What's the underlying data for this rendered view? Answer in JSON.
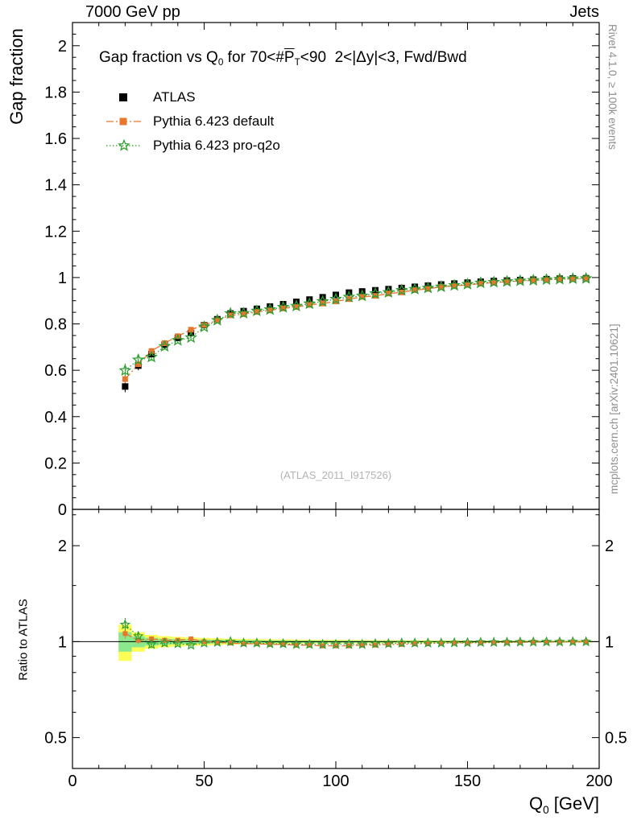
{
  "header": {
    "left": "7000 GeV pp",
    "right": "Jets"
  },
  "title": {
    "t1": "Gap fraction vs Q",
    "t1sub": "0",
    "t2": " for 70<#",
    "t3": "P",
    "t3sub": "T",
    "t4": "<90  2<|Δy|<3, Fwd/Bwd"
  },
  "legend": [
    {
      "label": "ATLAS",
      "marker": "square-filled",
      "color": "#000000",
      "line": "none"
    },
    {
      "label": "Pythia 6.423 default",
      "marker": "square-filled",
      "color": "#e8772e",
      "line": "dashdot"
    },
    {
      "label": "Pythia 6.423 pro-q2o",
      "marker": "star-open",
      "color": "#2f9e2f",
      "line": "dotted"
    }
  ],
  "watermark": "(ATLAS_2011_I917526)",
  "side_labels": {
    "top_right": "Rivet 4.1.0, ≥ 100k events",
    "bottom_right": "mcplots.cern.ch [arXiv:2401.10621]"
  },
  "axes": {
    "main_ylabel": "Gap fraction",
    "ratio_ylabel": "Ratio to ATLAS",
    "xlabel_prefix": "Q",
    "xlabel_sub": "0",
    "xlabel_suffix": " [GeV]",
    "x_major": [
      0,
      50,
      100,
      150,
      200
    ],
    "x_minor_step": 10,
    "main_y_major_step": 0.2,
    "main_y_minor_step": 0.05,
    "ratio_y_major": [
      0.5,
      1,
      2
    ],
    "ratio_y_minor": [
      0.4,
      0.6,
      0.7,
      0.8,
      0.9,
      1.5,
      2.5
    ]
  },
  "colors": {
    "band_outer": "#fdfd57",
    "band_inner": "#8ce88c",
    "frame": "#000000",
    "ratio_ref_line": "#000000"
  },
  "chart_data": {
    "type": "line",
    "title": "Gap fraction vs Q0 for 70<#PT<90 2<|Δy|<3, Fwd/Bwd",
    "xlabel": "Q0 [GeV]",
    "ylabel": "Gap fraction",
    "ratio_label": "Ratio to ATLAS",
    "xlim": [
      0,
      200
    ],
    "main_ylim": [
      0,
      2.1
    ],
    "ratio_ylim": [
      0.4,
      2.6
    ],
    "ratio_scale": "log",
    "x": [
      20,
      25,
      30,
      35,
      40,
      45,
      50,
      55,
      60,
      65,
      70,
      75,
      80,
      85,
      90,
      95,
      100,
      105,
      110,
      115,
      120,
      125,
      130,
      135,
      140,
      145,
      150,
      155,
      160,
      165,
      170,
      175,
      180,
      185,
      190,
      195
    ],
    "bin_half_width": 2.5,
    "series": [
      {
        "name": "ATLAS",
        "values": [
          0.53,
          0.62,
          0.67,
          0.71,
          0.74,
          0.76,
          0.795,
          0.82,
          0.845,
          0.855,
          0.865,
          0.875,
          0.885,
          0.895,
          0.905,
          0.915,
          0.925,
          0.935,
          0.94,
          0.945,
          0.95,
          0.955,
          0.96,
          0.965,
          0.97,
          0.974,
          0.978,
          0.982,
          0.985,
          0.987,
          0.989,
          0.991,
          0.993,
          0.995,
          0.996,
          0.997
        ],
        "yerr": [
          0.025,
          0.02,
          0.016,
          0.014,
          0.012,
          0.011,
          0.01,
          0.01,
          0.009,
          0.009,
          0.008,
          0.008,
          0.008,
          0.007,
          0.007,
          0.007,
          0.006,
          0.006,
          0.006,
          0.006,
          0.005,
          0.005,
          0.005,
          0.005,
          0.004,
          0.004,
          0.004,
          0.004,
          0.003,
          0.003,
          0.003,
          0.003,
          0.003,
          0.002,
          0.002,
          0.002
        ]
      },
      {
        "name": "Pythia 6.423 default",
        "values": [
          0.562,
          0.626,
          0.683,
          0.717,
          0.747,
          0.775,
          0.795,
          0.816,
          0.837,
          0.842,
          0.852,
          0.858,
          0.867,
          0.873,
          0.882,
          0.888,
          0.897,
          0.907,
          0.917,
          0.921,
          0.931,
          0.936,
          0.946,
          0.951,
          0.96,
          0.964,
          0.968,
          0.974,
          0.978,
          0.982,
          0.985,
          0.988,
          0.99,
          0.993,
          0.994,
          0.996
        ],
        "yerr": [
          0.02,
          0.016,
          0.013,
          0.011,
          0.01,
          0.009,
          0.008,
          0.008,
          0.007,
          0.007,
          0.007,
          0.006,
          0.006,
          0.006,
          0.006,
          0.005,
          0.005,
          0.005,
          0.005,
          0.005,
          0.004,
          0.004,
          0.004,
          0.004,
          0.004,
          0.004,
          0.003,
          0.003,
          0.003,
          0.003,
          0.003,
          0.003,
          0.003,
          0.002,
          0.002,
          0.002
        ]
      },
      {
        "name": "Pythia 6.423 pro-q2o",
        "values": [
          0.599,
          0.645,
          0.657,
          0.703,
          0.729,
          0.741,
          0.787,
          0.816,
          0.845,
          0.846,
          0.856,
          0.862,
          0.872,
          0.877,
          0.887,
          0.897,
          0.907,
          0.916,
          0.921,
          0.931,
          0.936,
          0.945,
          0.95,
          0.955,
          0.96,
          0.966,
          0.971,
          0.977,
          0.98,
          0.983,
          0.986,
          0.988,
          0.991,
          0.993,
          0.995,
          0.996
        ],
        "yerr": [
          0.03,
          0.022,
          0.017,
          0.014,
          0.012,
          0.011,
          0.01,
          0.009,
          0.009,
          0.008,
          0.008,
          0.007,
          0.007,
          0.007,
          0.006,
          0.006,
          0.006,
          0.006,
          0.005,
          0.005,
          0.005,
          0.005,
          0.005,
          0.004,
          0.004,
          0.004,
          0.004,
          0.004,
          0.004,
          0.003,
          0.003,
          0.003,
          0.003,
          0.003,
          0.003,
          0.003
        ]
      }
    ],
    "ratio": {
      "series": [
        {
          "name": "Pythia 6.423 default",
          "values": [
            1.06,
            1.01,
            1.02,
            1.01,
            1.01,
            1.02,
            1.0,
            0.995,
            0.99,
            0.985,
            0.985,
            0.98,
            0.98,
            0.975,
            0.975,
            0.97,
            0.97,
            0.97,
            0.975,
            0.975,
            0.98,
            0.98,
            0.985,
            0.985,
            0.99,
            0.99,
            0.99,
            0.992,
            0.993,
            0.995,
            0.996,
            0.997,
            0.997,
            0.998,
            0.998,
            0.999
          ]
        },
        {
          "name": "Pythia 6.423 pro-q2o",
          "values": [
            1.13,
            1.04,
            0.98,
            0.99,
            0.985,
            0.975,
            0.99,
            0.995,
            1.0,
            0.99,
            0.99,
            0.985,
            0.985,
            0.98,
            0.98,
            0.98,
            0.98,
            0.98,
            0.98,
            0.985,
            0.985,
            0.99,
            0.99,
            0.99,
            0.99,
            0.992,
            0.993,
            0.995,
            0.995,
            0.996,
            0.997,
            0.997,
            0.998,
            0.998,
            0.999,
            0.999
          ]
        }
      ],
      "band_outer": [
        0.13,
        0.07,
        0.05,
        0.04,
        0.035,
        0.03,
        0.027,
        0.024,
        0.021,
        0.019,
        0.018,
        0.017,
        0.016,
        0.015,
        0.014,
        0.013,
        0.013,
        0.012,
        0.012,
        0.011,
        0.011,
        0.01,
        0.01,
        0.01,
        0.009,
        0.009,
        0.009,
        0.008,
        0.008,
        0.008,
        0.008,
        0.007,
        0.007,
        0.007,
        0.007,
        0.007
      ],
      "band_inner": [
        0.07,
        0.04,
        0.028,
        0.022,
        0.019,
        0.017,
        0.015,
        0.013,
        0.012,
        0.011,
        0.01,
        0.009,
        0.009,
        0.008,
        0.008,
        0.007,
        0.007,
        0.007,
        0.007,
        0.006,
        0.006,
        0.006,
        0.006,
        0.005,
        0.005,
        0.005,
        0.005,
        0.005,
        0.004,
        0.004,
        0.004,
        0.004,
        0.004,
        0.004,
        0.004,
        0.004
      ]
    }
  }
}
